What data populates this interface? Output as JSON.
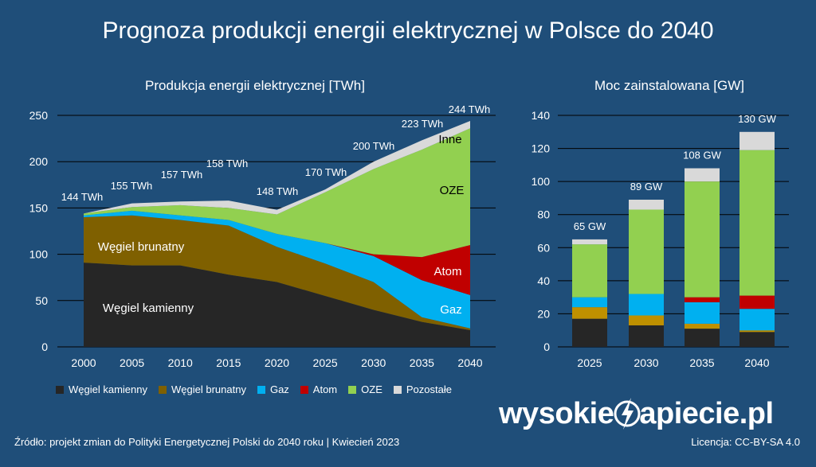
{
  "title": "Prognoza produkcji energii elektrycznej w Polsce do 2040",
  "chart_data": [
    {
      "type": "area",
      "title": "Produkcja energii elektrycznej [TWh]",
      "x": [
        "2000",
        "2005",
        "2010",
        "2015",
        "2020",
        "2025",
        "2030",
        "2035",
        "2040"
      ],
      "ylim": [
        0,
        250
      ],
      "yticks": [
        0,
        50,
        100,
        150,
        200,
        250
      ],
      "grid": true,
      "series": [
        {
          "name": "Węgiel kamienny",
          "color": "#262626",
          "values": [
            91,
            88,
            88,
            78,
            70,
            55,
            40,
            27,
            18
          ]
        },
        {
          "name": "Węgiel brunatny",
          "color": "#7f6000",
          "values": [
            49,
            54,
            49,
            53,
            38,
            35,
            30,
            5,
            2
          ]
        },
        {
          "name": "Gaz",
          "color": "#00b0f0",
          "values": [
            2,
            5,
            5,
            6,
            14,
            22,
            28,
            40,
            36
          ]
        },
        {
          "name": "Atom",
          "color": "#c00000",
          "values": [
            0,
            0,
            0,
            0,
            0,
            0,
            2,
            25,
            54
          ]
        },
        {
          "name": "OZE",
          "color": "#92d050",
          "values": [
            2,
            4,
            11,
            13,
            21,
            55,
            92,
            116,
            126
          ]
        },
        {
          "name": "Pozostałe",
          "color": "#d9d9d9",
          "values": [
            0,
            4,
            4,
            8,
            5,
            3,
            8,
            10,
            8
          ]
        }
      ],
      "totals": [
        "144 TWh",
        "155 TWh",
        "157 TWh",
        "158 TWh",
        "148 TWh",
        "170 TWh",
        "200 TWh",
        "223 TWh",
        "244 TWh"
      ],
      "area_labels": [
        "Węgiel kamienny",
        "Węgiel brunatny",
        "Gaz",
        "Atom",
        "OZE",
        "Inne"
      ]
    },
    {
      "type": "bar",
      "stacked": true,
      "title": "Moc zainstalowana [GW]",
      "categories": [
        "2025",
        "2030",
        "2035",
        "2040"
      ],
      "ylim": [
        0,
        140
      ],
      "yticks": [
        0,
        20,
        40,
        60,
        80,
        100,
        120,
        140
      ],
      "grid": true,
      "series": [
        {
          "name": "Węgiel kamienny",
          "color": "#262626",
          "values": [
            17,
            13,
            11,
            9
          ]
        },
        {
          "name": "Węgiel brunatny",
          "color": "#bf9000",
          "values": [
            7,
            6,
            3,
            1
          ]
        },
        {
          "name": "Gaz",
          "color": "#00b0f0",
          "values": [
            6,
            13,
            13,
            13
          ]
        },
        {
          "name": "Atom",
          "color": "#c00000",
          "values": [
            0,
            0,
            3,
            8
          ]
        },
        {
          "name": "OZE",
          "color": "#92d050",
          "values": [
            32,
            51,
            70,
            88
          ]
        },
        {
          "name": "Pozostałe",
          "color": "#d9d9d9",
          "values": [
            3,
            6,
            8,
            11
          ]
        }
      ],
      "totals": [
        "65 GW",
        "89 GW",
        "108 GW",
        "130 GW"
      ]
    }
  ],
  "legend": [
    {
      "label": "Węgiel kamienny",
      "color": "#262626"
    },
    {
      "label": "Węgiel brunatny",
      "color": "#7f6000"
    },
    {
      "label": "Gaz",
      "color": "#00b0f0"
    },
    {
      "label": "Atom",
      "color": "#c00000"
    },
    {
      "label": "OZE",
      "color": "#92d050"
    },
    {
      "label": "Pozostałe",
      "color": "#d9d9d9"
    }
  ],
  "logo": {
    "part1": "wysokie",
    "part2": "apiecie.pl"
  },
  "license": "Licencja: CC-BY-SA 4.0",
  "source": "Źródło: projekt zmian do Polityki Energetycznej Polski do 2040 roku  |  Kwiecień 2023"
}
